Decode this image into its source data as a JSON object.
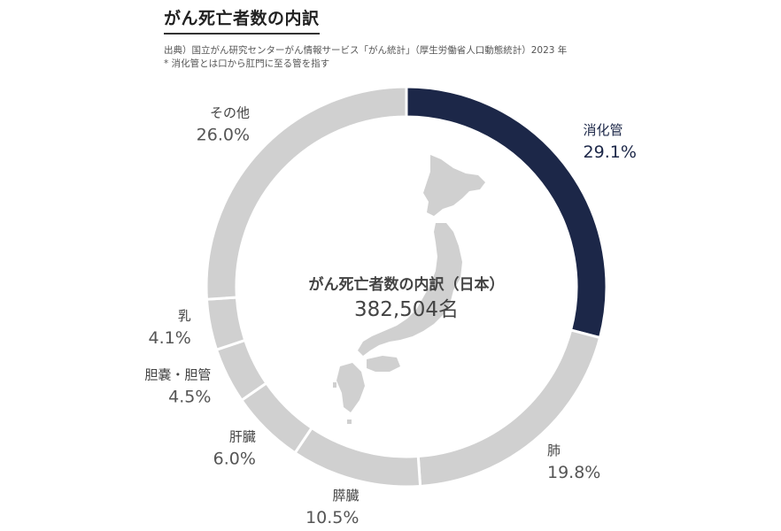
{
  "header": {
    "title": "がん死亡者数の内訳",
    "source": "出典）国立がん研究センターがん情報サービス「がん統計」（厚生労働省人口動態統計）2023 年",
    "note": "* 消化管とは口から肛門に至る管を指す"
  },
  "colors": {
    "accent": "#1c2748",
    "segment_default": "#d0d0d0",
    "map": "#d0d0d0"
  },
  "chart_data": {
    "type": "pie",
    "style": "donut",
    "center_title": "がん死亡者数の内訳（日本）",
    "center_value": "382,504名",
    "total": 382504,
    "unit": "%",
    "slices": [
      {
        "name": "消化管",
        "value": 29.1,
        "label": "29.1%",
        "highlight": true
      },
      {
        "name": "肺",
        "value": 19.8,
        "label": "19.8%"
      },
      {
        "name": "膵臓",
        "value": 10.5,
        "label": "10.5%"
      },
      {
        "name": "肝臓",
        "value": 6.0,
        "label": "6.0%"
      },
      {
        "name": "胆嚢・胆管",
        "value": 4.5,
        "label": "4.5%"
      },
      {
        "name": "乳",
        "value": 4.1,
        "label": "4.1%"
      },
      {
        "name": "その他",
        "value": 26.0,
        "label": "26.0%"
      }
    ]
  }
}
